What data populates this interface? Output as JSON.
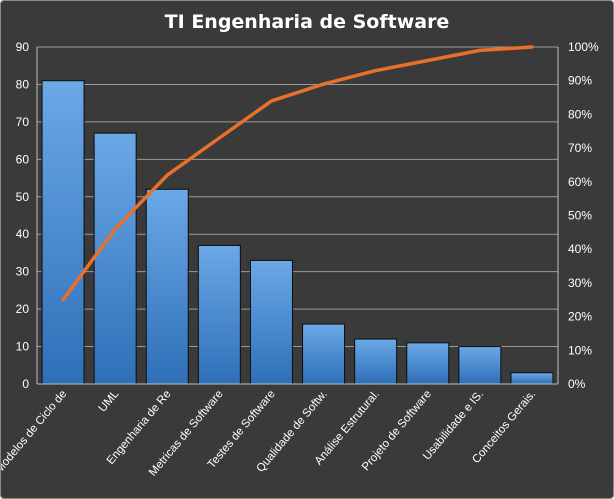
{
  "chart_data": {
    "type": "bar",
    "title": "TI Engenharia  de Software",
    "categories": [
      "Modelos de Ciclo de",
      "UML",
      "Engenharia de Re",
      "Metricas de Software",
      "Testes de Software",
      "Qualidade de Softw.",
      "Análise Estrutural.",
      "Projeto de Software",
      "Usabilidade e IS.",
      "Conceitos Gerais."
    ],
    "series": [
      {
        "type": "bar",
        "values": [
          81,
          67,
          52,
          37,
          33,
          16,
          12,
          11,
          10,
          3
        ],
        "color": "#4a8fd6"
      },
      {
        "type": "line",
        "axis": "secondary",
        "values": [
          25,
          46,
          62,
          73,
          84,
          89,
          93,
          96,
          99,
          100
        ],
        "color": "#e8702a"
      }
    ],
    "ylim": [
      0,
      90
    ],
    "y_ticks": [
      "0",
      "10",
      "20",
      "30",
      "40",
      "50",
      "60",
      "70",
      "80",
      "90"
    ],
    "y2lim": [
      0,
      100
    ],
    "y2_ticks": [
      "0%",
      "10%",
      "20%",
      "30%",
      "40%",
      "50%",
      "60%",
      "70%",
      "80%",
      "90%",
      "100%"
    ],
    "grid": true,
    "legend": false,
    "background": "#3a3a3a",
    "text_color": "#ffffff"
  }
}
